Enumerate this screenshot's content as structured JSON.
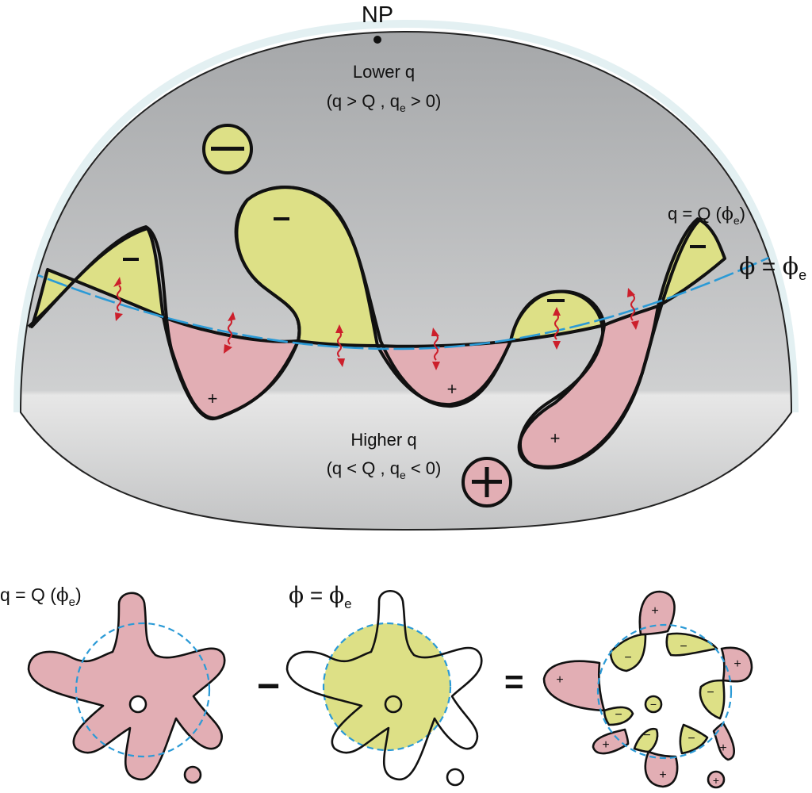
{
  "top_diagram": {
    "pole_label": "NP",
    "lower_region": {
      "title": "Lower q",
      "condition_prefix": "(q > Q , q",
      "condition_sub": "e",
      "condition_suffix": " > 0)"
    },
    "higher_region": {
      "title": "Higher q",
      "condition_prefix": "(q < Q , q",
      "condition_sub": "e",
      "condition_suffix": " < 0)"
    },
    "contour_label": {
      "prefix": "q = Q (",
      "phi": "ϕ",
      "sub": "e",
      "suffix": ")"
    },
    "equator_label": {
      "phi": "ϕ",
      "eq": " = ",
      "phi2": "ϕ",
      "sub": "e"
    },
    "minus_sign": "−",
    "plus_sign": "+"
  },
  "bottom_row": {
    "panel_left_label": {
      "prefix": "q = Q (",
      "phi": "ϕ",
      "sub": "e",
      "suffix": ")"
    },
    "panel_mid_label": {
      "phi": "ϕ",
      "eq": " = ",
      "phi2": "ϕ",
      "sub": "e"
    },
    "minus_operator": "−",
    "equals_operator": "=",
    "minus_sign": "−",
    "plus_sign": "+"
  },
  "colors": {
    "positive_fill": "#e2aeb4",
    "negative_fill": "#dde086",
    "contour_line": "#111111",
    "latitude_line": "#2b9ad6",
    "flux_arrow": "#cc1f2b",
    "dome_shade": "#a9abad"
  }
}
